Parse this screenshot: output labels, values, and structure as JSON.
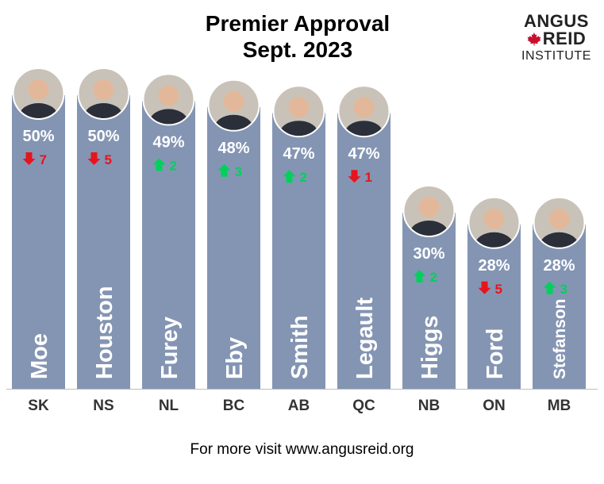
{
  "title": {
    "line1": "Premier Approval",
    "line2": "Sept. 2023"
  },
  "logo": {
    "line1": "ANGUS",
    "line2": "REID",
    "line3": "INSTITUTE",
    "icon": "maple-leaf-icon",
    "icon_color": "#c8102e"
  },
  "footer": {
    "text": "For more visit www.angusreid.org"
  },
  "colors": {
    "bar": "#8495b3",
    "up": "#00d15b",
    "down": "#e8141c",
    "label": "#ffffff",
    "axis": "#333333"
  },
  "chart_data": {
    "type": "bar",
    "categories": [
      "SK",
      "NS",
      "NL",
      "BC",
      "AB",
      "QC",
      "NB",
      "ON",
      "MB"
    ],
    "names": [
      "Moe",
      "Houston",
      "Furey",
      "Eby",
      "Smith",
      "Legault",
      "Higgs",
      "Ford",
      "Stefanson"
    ],
    "values": [
      50,
      50,
      49,
      48,
      47,
      47,
      30,
      28,
      28
    ],
    "value_labels": [
      "50%",
      "50%",
      "49%",
      "48%",
      "47%",
      "47%",
      "30%",
      "28%",
      "28%"
    ],
    "changes": [
      {
        "direction": "down",
        "label": "7"
      },
      {
        "direction": "down",
        "label": "5"
      },
      {
        "direction": "up",
        "label": "2"
      },
      {
        "direction": "up",
        "label": "3"
      },
      {
        "direction": "up",
        "label": "2"
      },
      {
        "direction": "down",
        "label": "1"
      },
      {
        "direction": "up",
        "label": "2"
      },
      {
        "direction": "down",
        "label": "5"
      },
      {
        "direction": "up",
        "label": "3"
      }
    ],
    "title": "Premier Approval Sept. 2023",
    "ylim": [
      0,
      50
    ],
    "grid": false,
    "legend": "none"
  }
}
